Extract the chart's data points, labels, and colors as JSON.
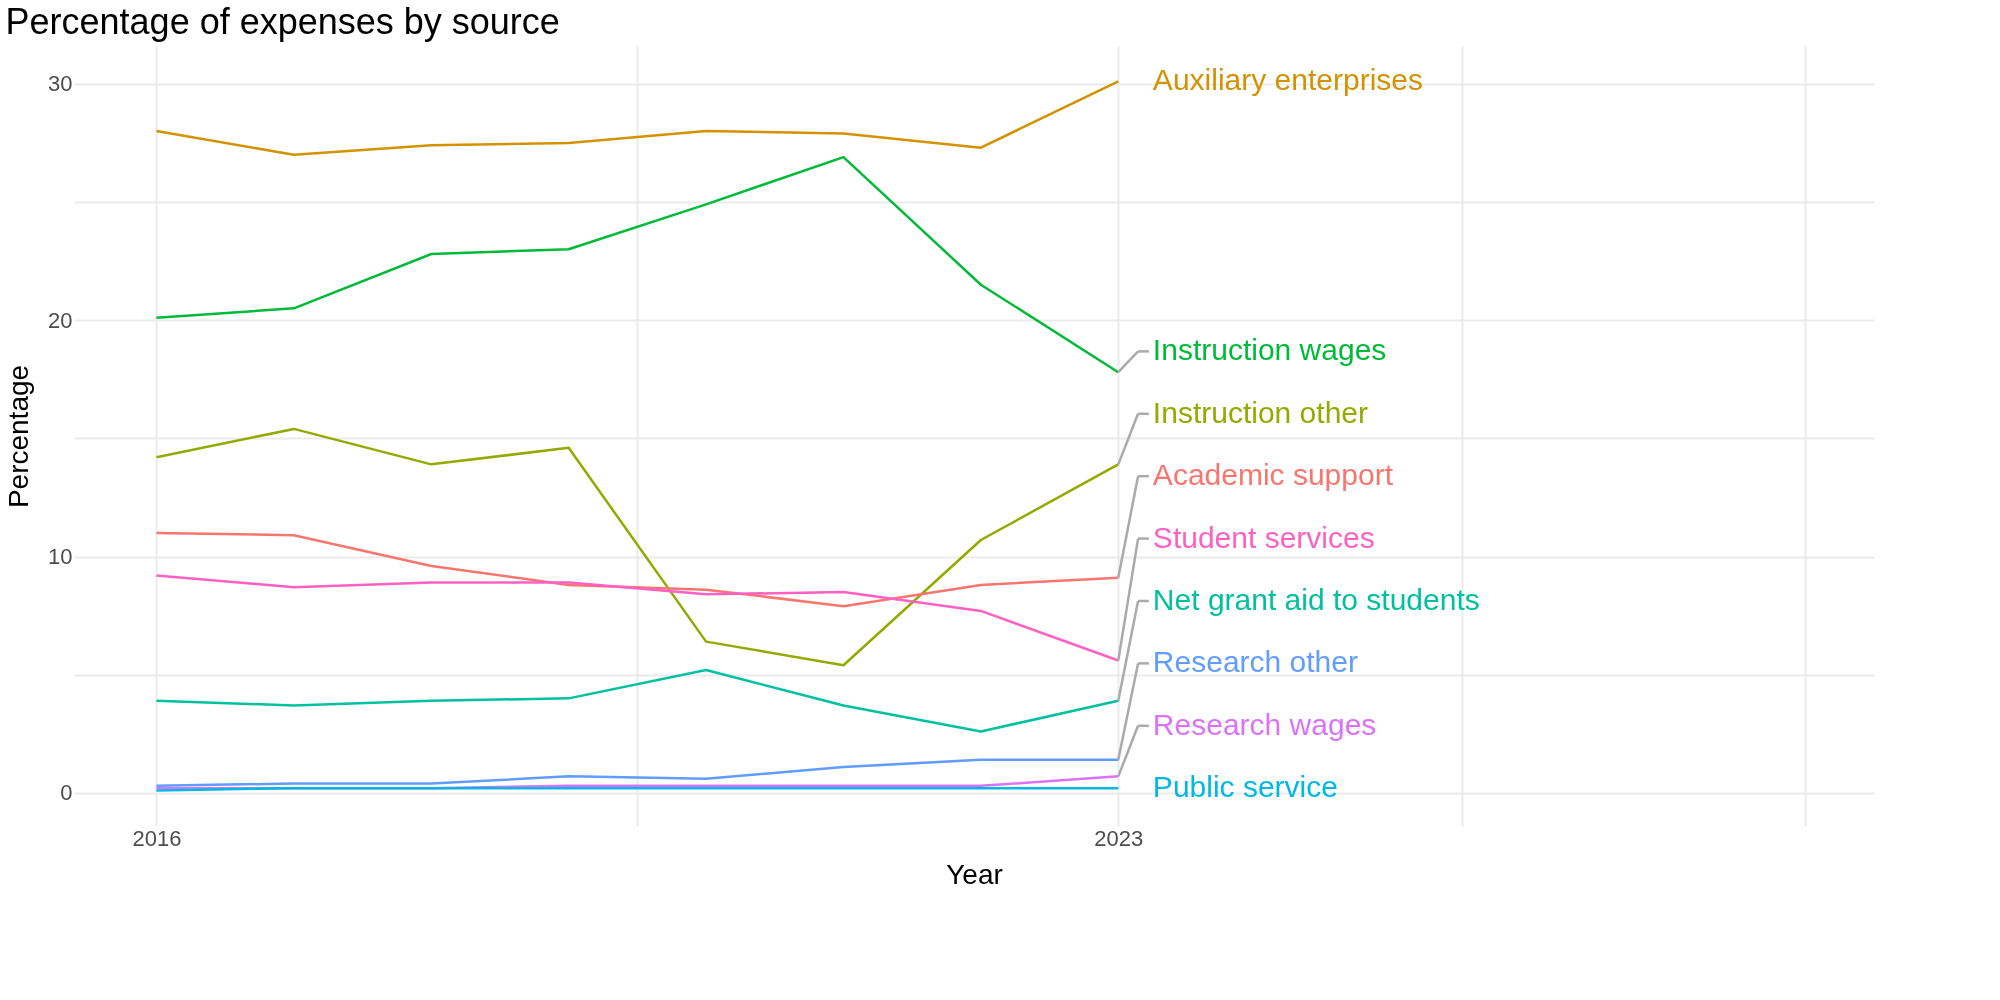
{
  "chart_data": {
    "type": "line",
    "title": "Percentage of expenses by source",
    "xlabel": "Year",
    "ylabel": "Percentage",
    "x": [
      2016,
      2017,
      2018,
      2019,
      2020,
      2021,
      2022,
      2023
    ],
    "series": [
      {
        "name": "Auxiliary enterprises",
        "color": "#d39200",
        "values": [
          28.0,
          27.0,
          27.4,
          27.5,
          28.0,
          27.9,
          27.3,
          30.1
        ]
      },
      {
        "name": "Instruction wages",
        "color": "#00ba38",
        "values": [
          20.1,
          20.5,
          22.8,
          23.0,
          24.9,
          26.9,
          21.5,
          17.8
        ]
      },
      {
        "name": "Instruction other",
        "color": "#93aa00",
        "values": [
          14.2,
          15.4,
          13.9,
          14.6,
          6.4,
          5.4,
          10.7,
          13.9
        ]
      },
      {
        "name": "Academic support",
        "color": "#f8766d",
        "values": [
          11.0,
          10.9,
          9.6,
          8.8,
          8.6,
          7.9,
          8.8,
          9.1
        ]
      },
      {
        "name": "Student services",
        "color": "#ff61c3",
        "values": [
          9.2,
          8.7,
          8.9,
          8.9,
          8.4,
          8.5,
          7.7,
          5.6
        ]
      },
      {
        "name": "Net grant aid to students",
        "color": "#00c19f",
        "values": [
          3.9,
          3.7,
          3.9,
          4.0,
          5.2,
          3.7,
          2.6,
          3.9
        ]
      },
      {
        "name": "Research other",
        "color": "#619cff",
        "values": [
          0.3,
          0.4,
          0.4,
          0.7,
          0.6,
          1.1,
          1.4,
          1.4
        ]
      },
      {
        "name": "Research wages",
        "color": "#db72fb",
        "values": [
          0.2,
          0.2,
          0.2,
          0.3,
          0.3,
          0.3,
          0.3,
          0.7
        ]
      },
      {
        "name": "Public service",
        "color": "#00b9e3",
        "values": [
          0.1,
          0.2,
          0.2,
          0.2,
          0.2,
          0.2,
          0.2,
          0.2
        ]
      }
    ],
    "xlim": [
      2015.4,
      2028.5
    ],
    "ylim": [
      -1.4,
      31.6
    ],
    "xticks": [
      2016,
      {
        "value": 2019.5,
        "label": null
      },
      2023,
      {
        "value": 2025.5,
        "label": null
      },
      {
        "value": 2028,
        "label": null
      }
    ],
    "yticks": [
      0,
      {
        "value": 5,
        "label": null
      },
      10,
      {
        "value": 15,
        "label": null
      },
      20,
      {
        "value": 25,
        "label": null
      },
      30
    ],
    "grid": true,
    "legend": false,
    "marker": "none",
    "line_style": "solid"
  }
}
